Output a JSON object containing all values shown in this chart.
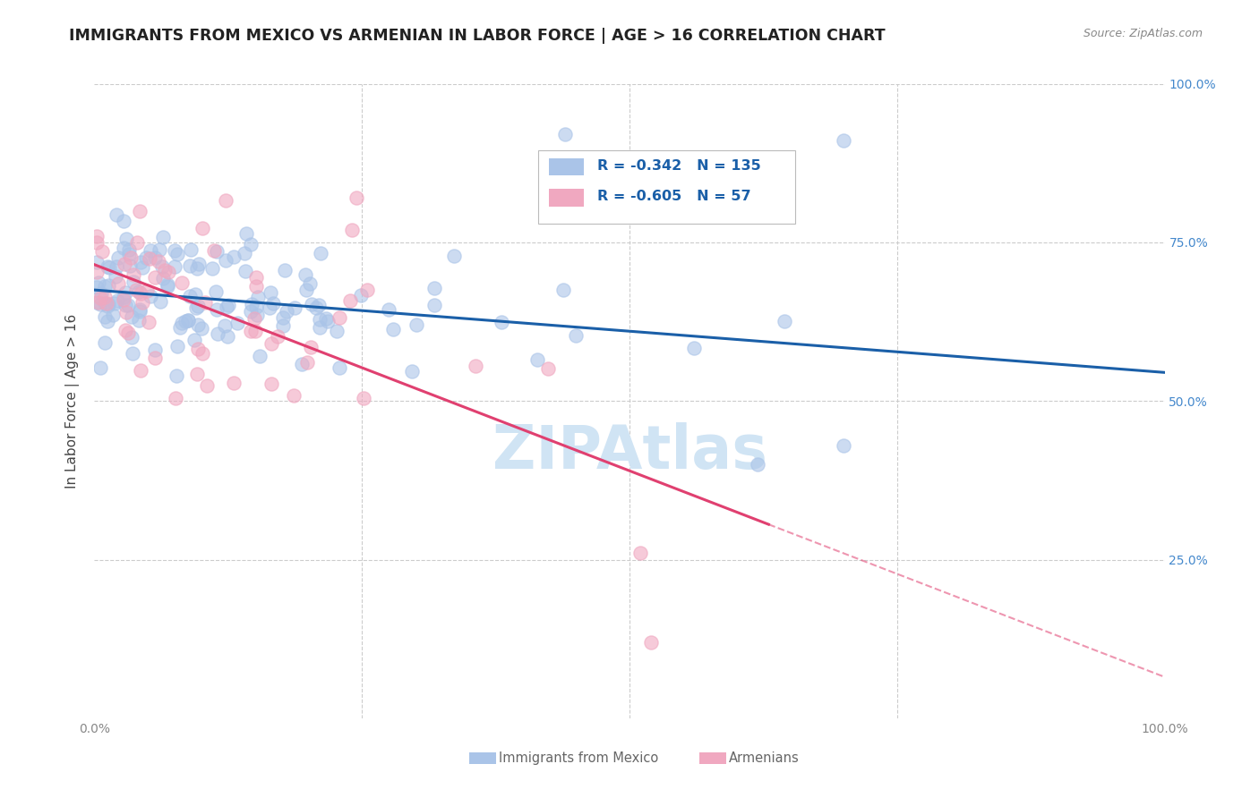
{
  "title": "IMMIGRANTS FROM MEXICO VS ARMENIAN IN LABOR FORCE | AGE > 16 CORRELATION CHART",
  "source": "Source: ZipAtlas.com",
  "ylabel": "In Labor Force | Age > 16",
  "mexico_R": -0.342,
  "mexico_N": 135,
  "armenian_R": -0.605,
  "armenian_N": 57,
  "mexico_color": "#aac4e8",
  "armenian_color": "#f0a8c0",
  "mexico_line_color": "#1a5fa8",
  "armenian_line_color": "#e04070",
  "legend_text_color": "#1a5fa8",
  "background_color": "#ffffff",
  "grid_color": "#cccccc",
  "watermark_color": "#d0e4f4",
  "title_color": "#222222",
  "ylabel_color": "#444444",
  "tick_color": "#888888",
  "right_tick_color": "#4488cc",
  "source_color": "#888888",
  "legend_border_color": "#bbbbbb",
  "bottom_legend_color": "#666666"
}
